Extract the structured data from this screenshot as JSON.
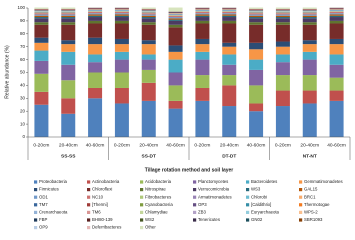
{
  "chart_data": {
    "type": "stacked-bar",
    "y_label": "Relative abundance (%)",
    "x_label": "Tillage rotation method and soil layer",
    "categories": [
      "0-20cm",
      "20-40cm",
      "40-60cm",
      "0-20cm",
      "20-40cm",
      "40-60cm",
      "0-20cm",
      "20-40cm",
      "40-60cm",
      "0-20cm",
      "20-40cm",
      "40-60cm"
    ],
    "group_labels": [
      "SS-SS",
      "SS-DT",
      "DT-DT",
      "NT-NT"
    ],
    "ylim": [
      0,
      100
    ],
    "yticks": [
      0,
      10,
      20,
      30,
      40,
      50,
      60,
      70,
      80,
      90,
      100
    ],
    "series": [
      {
        "name": "Proteobacteria",
        "color": "#4f81bd",
        "values": [
          25,
          18,
          30,
          26,
          28,
          22,
          28,
          24,
          20,
          24,
          26,
          28
        ]
      },
      {
        "name": "Actinobacteria",
        "color": "#c0504d",
        "values": [
          10,
          12,
          8,
          12,
          14,
          6,
          10,
          16,
          6,
          12,
          10,
          8
        ]
      },
      {
        "name": "Acidobacteria",
        "color": "#9bbb59",
        "values": [
          14,
          14,
          12,
          12,
          10,
          12,
          10,
          8,
          14,
          12,
          12,
          10
        ]
      },
      {
        "name": "Planctomycetes",
        "color": "#8064a2",
        "values": [
          10,
          12,
          8,
          10,
          8,
          10,
          12,
          8,
          12,
          10,
          12,
          10
        ]
      },
      {
        "name": "Bacteroidetes",
        "color": "#4bacc6",
        "values": [
          8,
          10,
          6,
          6,
          4,
          10,
          6,
          8,
          8,
          6,
          6,
          8
        ]
      },
      {
        "name": "Gemmatimonadetes",
        "color": "#f79646",
        "values": [
          6,
          6,
          8,
          6,
          8,
          6,
          6,
          6,
          8,
          6,
          6,
          8
        ]
      },
      {
        "name": "Firmicutes",
        "color": "#2c4d75",
        "values": [
          4,
          3,
          5,
          4,
          3,
          5,
          4,
          3,
          5,
          4,
          3,
          4
        ]
      },
      {
        "name": "Chloroflexi",
        "color": "#772c2a",
        "values": [
          10,
          12,
          11,
          12,
          12,
          14,
          12,
          15,
          14,
          13,
          12,
          12
        ]
      },
      {
        "name": "Nitrospirae",
        "color": "#5f7530",
        "values": [
          2,
          2,
          2,
          2,
          2,
          2,
          2,
          2,
          2,
          2,
          2,
          2
        ]
      },
      {
        "name": "Verrucomicrobia",
        "color": "#4d3b62",
        "values": [
          3,
          3,
          3,
          3,
          3,
          3,
          3,
          3,
          3,
          3,
          3,
          3
        ]
      },
      {
        "name": "WS3",
        "color": "#276a7c",
        "values": [
          1,
          1,
          1,
          1,
          1,
          1,
          1,
          1,
          1,
          1,
          1,
          1
        ]
      },
      {
        "name": "GAL15",
        "color": "#b65708",
        "values": [
          1,
          1,
          1,
          1,
          1,
          1,
          1,
          1,
          1,
          1,
          1,
          1
        ]
      },
      {
        "name": "OD1",
        "color": "#729aca",
        "values": [
          1,
          1,
          1,
          1,
          1,
          1,
          1,
          1,
          1,
          1,
          1,
          1
        ]
      },
      {
        "name": "NC10",
        "color": "#cd7371",
        "values": [
          1,
          1,
          1,
          1,
          1,
          1,
          1,
          1,
          1,
          1,
          1,
          1
        ]
      },
      {
        "name": "Fibrobacteres",
        "color": "#afc97a",
        "values": [
          0.5,
          0.5,
          0.5,
          0.5,
          0.5,
          0.5,
          0.5,
          0.5,
          0.5,
          0.5,
          0.5,
          0.5
        ]
      },
      {
        "name": "Armatimonadetes",
        "color": "#9983b5",
        "values": [
          0.5,
          0.5,
          0.5,
          0.5,
          0.5,
          0.5,
          0.5,
          0.5,
          0.5,
          0.5,
          0.5,
          0.5
        ]
      },
      {
        "name": "Chlorobi",
        "color": "#6fbdd1",
        "values": [
          0.5,
          0.5,
          0.5,
          0.5,
          0.5,
          0.5,
          0.5,
          0.5,
          0.5,
          0.5,
          0.5,
          0.5
        ]
      },
      {
        "name": "BRC1",
        "color": "#f9ab6b",
        "values": [
          0.5,
          0.5,
          0.5,
          0.5,
          0.5,
          0.5,
          0.5,
          0.5,
          0.5,
          0.5,
          0.5,
          0.5
        ]
      },
      {
        "name": "TM7",
        "color": "#3a679c",
        "values": [
          0.5,
          0.5,
          0.5,
          0.5,
          0.5,
          0.5,
          0.5,
          0.5,
          0.5,
          0.5,
          0.5,
          0.5
        ]
      },
      {
        "name": "[Thermi]",
        "color": "#9f3b38",
        "values": [
          0.5,
          0.5,
          0.5,
          0.5,
          0.5,
          0.5,
          0.5,
          0.5,
          0.5,
          0.5,
          0.5,
          0.5
        ]
      },
      {
        "name": "Cyanobacteria",
        "color": "#7f9c40",
        "values": [
          0.02,
          0.02,
          0.02,
          0.02,
          0.02,
          0.02,
          0.02,
          0.02,
          0.02,
          0.02,
          0.02,
          0.02
        ]
      },
      {
        "name": "OP3",
        "color": "#664f83",
        "values": [
          0.02,
          0.02,
          0.02,
          0.02,
          0.02,
          0.02,
          0.02,
          0.02,
          0.02,
          0.02,
          0.02,
          0.02
        ]
      },
      {
        "name": "[Caldithrix]",
        "color": "#358ea6",
        "values": [
          0.02,
          0.02,
          0.02,
          0.02,
          0.02,
          0.02,
          0.02,
          0.02,
          0.02,
          0.02,
          0.02,
          0.02
        ]
      },
      {
        "name": "Thermotogae",
        "color": "#f47a1f",
        "values": [
          0.02,
          0.02,
          0.02,
          0.02,
          0.02,
          0.02,
          0.02,
          0.02,
          0.02,
          0.02,
          0.02,
          0.02
        ]
      },
      {
        "name": "Crenarchaeota",
        "color": "#95b3d7",
        "values": [
          0.02,
          0.02,
          0.02,
          0.02,
          0.02,
          0.02,
          0.02,
          0.02,
          0.02,
          0.02,
          0.02,
          0.02
        ]
      },
      {
        "name": "TM6",
        "color": "#d99694",
        "values": [
          0.02,
          0.02,
          0.02,
          0.02,
          0.02,
          0.02,
          0.02,
          0.02,
          0.02,
          0.02,
          0.02,
          0.02
        ]
      },
      {
        "name": "Chlamydiae",
        "color": "#c3d69b",
        "values": [
          0.02,
          0.02,
          0.02,
          0.02,
          0.02,
          0.02,
          0.02,
          0.02,
          0.02,
          0.02,
          0.02,
          0.02
        ]
      },
      {
        "name": "ZB3",
        "color": "#b3a2c7",
        "values": [
          0.02,
          0.02,
          0.02,
          0.02,
          0.02,
          0.02,
          0.02,
          0.02,
          0.02,
          0.02,
          0.02,
          0.02
        ]
      },
      {
        "name": "Euryarchaeota",
        "color": "#93cddd",
        "values": [
          0.02,
          0.02,
          0.02,
          0.02,
          0.02,
          0.02,
          0.02,
          0.02,
          0.02,
          0.02,
          0.02,
          0.02
        ]
      },
      {
        "name": "WPS-2",
        "color": "#fac090",
        "values": [
          0.02,
          0.02,
          0.02,
          0.02,
          0.02,
          0.02,
          0.02,
          0.02,
          0.02,
          0.02,
          0.02,
          0.02
        ]
      },
      {
        "name": "FBP",
        "color": "#1f3a5a",
        "values": [
          0.02,
          0.02,
          0.02,
          0.02,
          0.02,
          0.02,
          0.02,
          0.02,
          0.02,
          0.02,
          0.02,
          0.02
        ]
      },
      {
        "name": "BHI80-139",
        "color": "#5a2120",
        "values": [
          0.02,
          0.02,
          0.02,
          0.02,
          0.02,
          0.02,
          0.02,
          0.02,
          0.02,
          0.02,
          0.02,
          0.02
        ]
      },
      {
        "name": "WS2",
        "color": "#475824",
        "values": [
          0.02,
          0.02,
          0.02,
          0.02,
          0.02,
          0.02,
          0.02,
          0.02,
          0.02,
          0.02,
          0.02,
          0.02
        ]
      },
      {
        "name": "Tenericutes",
        "color": "#3a2c4a",
        "values": [
          0.02,
          0.02,
          0.02,
          0.02,
          0.02,
          0.02,
          0.02,
          0.02,
          0.02,
          0.02,
          0.02,
          0.02
        ]
      },
      {
        "name": "GN02",
        "color": "#1d4f5d",
        "values": [
          0.02,
          0.02,
          0.02,
          0.02,
          0.02,
          0.02,
          0.02,
          0.02,
          0.02,
          0.02,
          0.02,
          0.02
        ]
      },
      {
        "name": "SBR1093",
        "color": "#884106",
        "values": [
          0.02,
          0.02,
          0.02,
          0.02,
          0.02,
          0.02,
          0.02,
          0.02,
          0.02,
          0.02,
          0.02,
          0.02
        ]
      },
      {
        "name": "OP9",
        "color": "#b9cde5",
        "values": [
          0.02,
          0.02,
          0.02,
          0.02,
          0.02,
          0.02,
          0.02,
          0.02,
          0.02,
          0.02,
          0.02,
          0.02
        ]
      },
      {
        "name": "Deferribacteres",
        "color": "#e6b9b8",
        "values": [
          0.02,
          0.02,
          0.02,
          0.02,
          0.02,
          0.02,
          0.02,
          0.02,
          0.02,
          0.02,
          0.02,
          0.02
        ]
      },
      {
        "name": "Other",
        "color": "#d7e4bd",
        "values": [
          1,
          1,
          0,
          0,
          1,
          3,
          0,
          0,
          1,
          1,
          1,
          0
        ]
      }
    ]
  }
}
